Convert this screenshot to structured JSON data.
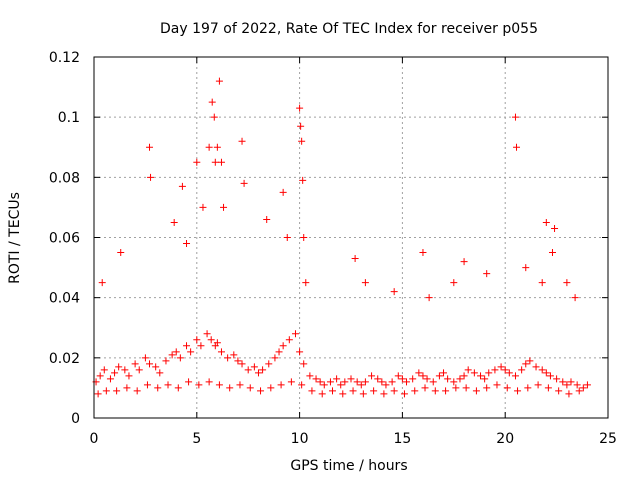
{
  "chart_data": {
    "type": "scatter",
    "title": "Day 197 of 2022, Rate Of TEC Index for receiver p055",
    "xlabel": "GPS time / hours",
    "ylabel": "ROTI / TECUs",
    "xlim": [
      0,
      25
    ],
    "ylim": [
      0,
      0.12
    ],
    "x_ticks": [
      "0",
      "5",
      "10",
      "15",
      "20",
      "25"
    ],
    "y_ticks": [
      "0",
      "0.02",
      "0.04",
      "0.06",
      "0.08",
      "0.1",
      "0.12"
    ],
    "grid": true,
    "marker": "plus",
    "color": "#ff0000",
    "series": [
      {
        "x": [
          0.1,
          0.3,
          0.5,
          0.8,
          1.0,
          1.2,
          1.5,
          1.7,
          2.0,
          2.2,
          2.5,
          2.7,
          3.0,
          3.2,
          3.5,
          3.8,
          4.0,
          4.2,
          4.5,
          4.7,
          5.0,
          5.2,
          5.5,
          5.7,
          5.9,
          6.0,
          6.2,
          6.5,
          6.8,
          7.0,
          7.2,
          7.5,
          7.8,
          8.0,
          8.2,
          8.5,
          8.8,
          9.0,
          9.2,
          9.5,
          9.8,
          10.0,
          10.2,
          10.5,
          10.8,
          11.0,
          11.2,
          11.5,
          11.8,
          12.0,
          12.2,
          12.5,
          12.8,
          13.0,
          13.2,
          13.5,
          13.8,
          14.0,
          14.2,
          14.5,
          14.8,
          15.0,
          15.2,
          15.5,
          15.8,
          16.0,
          16.2,
          16.5,
          16.8,
          17.0,
          17.2,
          17.5,
          17.8,
          18.0,
          18.2,
          18.5,
          18.8,
          19.0,
          19.2,
          19.5,
          19.8,
          20.0,
          20.2,
          20.5,
          20.8,
          21.0,
          21.2,
          21.5,
          21.8,
          22.0,
          22.2,
          22.5,
          22.8,
          23.0,
          23.2,
          23.5,
          23.8,
          24.0,
          0.2,
          0.6,
          1.1,
          1.6,
          2.1,
          2.6,
          3.1,
          3.6,
          4.1,
          4.6,
          5.1,
          5.6,
          6.1,
          6.6,
          7.1,
          7.6,
          8.1,
          8.6,
          9.1,
          9.6,
          10.1,
          10.6,
          11.1,
          11.6,
          12.1,
          12.6,
          13.1,
          13.6,
          14.1,
          14.6,
          15.1,
          15.6,
          16.1,
          16.6,
          17.1,
          17.6,
          18.1,
          18.6,
          19.1,
          19.6,
          20.1,
          20.6,
          21.1,
          21.6,
          22.1,
          22.6,
          23.1,
          23.6,
          0.4,
          1.3,
          2.7,
          2.75,
          3.9,
          4.3,
          4.5,
          5.0,
          5.3,
          5.6,
          5.75,
          5.85,
          5.9,
          6.0,
          6.1,
          6.2,
          6.3,
          7.2,
          7.3,
          8.4,
          9.2,
          9.4,
          10.0,
          10.05,
          10.1,
          10.15,
          10.2,
          10.3,
          12.7,
          13.2,
          14.6,
          16.0,
          16.3,
          17.5,
          18.0,
          19.1,
          20.5,
          20.55,
          21.0,
          21.8,
          22.0,
          22.3,
          22.4,
          23.0,
          23.4
        ],
        "y": [
          0.012,
          0.014,
          0.016,
          0.013,
          0.015,
          0.017,
          0.016,
          0.014,
          0.018,
          0.016,
          0.02,
          0.018,
          0.017,
          0.015,
          0.019,
          0.021,
          0.022,
          0.02,
          0.024,
          0.022,
          0.026,
          0.024,
          0.028,
          0.026,
          0.024,
          0.025,
          0.022,
          0.02,
          0.021,
          0.019,
          0.018,
          0.016,
          0.017,
          0.015,
          0.016,
          0.018,
          0.02,
          0.022,
          0.024,
          0.026,
          0.028,
          0.022,
          0.018,
          0.014,
          0.013,
          0.012,
          0.011,
          0.012,
          0.013,
          0.011,
          0.012,
          0.013,
          0.012,
          0.011,
          0.012,
          0.014,
          0.013,
          0.012,
          0.011,
          0.012,
          0.014,
          0.013,
          0.012,
          0.013,
          0.015,
          0.014,
          0.013,
          0.012,
          0.014,
          0.015,
          0.013,
          0.012,
          0.013,
          0.014,
          0.016,
          0.015,
          0.014,
          0.013,
          0.015,
          0.016,
          0.017,
          0.016,
          0.015,
          0.014,
          0.016,
          0.018,
          0.019,
          0.017,
          0.016,
          0.015,
          0.014,
          0.013,
          0.012,
          0.011,
          0.012,
          0.011,
          0.01,
          0.011,
          0.008,
          0.009,
          0.009,
          0.01,
          0.009,
          0.011,
          0.01,
          0.011,
          0.01,
          0.012,
          0.011,
          0.012,
          0.011,
          0.01,
          0.011,
          0.01,
          0.009,
          0.01,
          0.011,
          0.012,
          0.011,
          0.009,
          0.008,
          0.009,
          0.008,
          0.009,
          0.008,
          0.009,
          0.008,
          0.009,
          0.008,
          0.009,
          0.01,
          0.009,
          0.009,
          0.01,
          0.01,
          0.009,
          0.01,
          0.011,
          0.01,
          0.009,
          0.01,
          0.011,
          0.01,
          0.009,
          0.008,
          0.009,
          0.045,
          0.055,
          0.09,
          0.08,
          0.065,
          0.077,
          0.058,
          0.085,
          0.07,
          0.09,
          0.105,
          0.1,
          0.085,
          0.09,
          0.112,
          0.085,
          0.07,
          0.092,
          0.078,
          0.066,
          0.075,
          0.06,
          0.103,
          0.097,
          0.092,
          0.079,
          0.06,
          0.045,
          0.053,
          0.045,
          0.042,
          0.055,
          0.04,
          0.045,
          0.052,
          0.048,
          0.1,
          0.09,
          0.05,
          0.045,
          0.065,
          0.055,
          0.063,
          0.045,
          0.04
        ]
      }
    ]
  }
}
